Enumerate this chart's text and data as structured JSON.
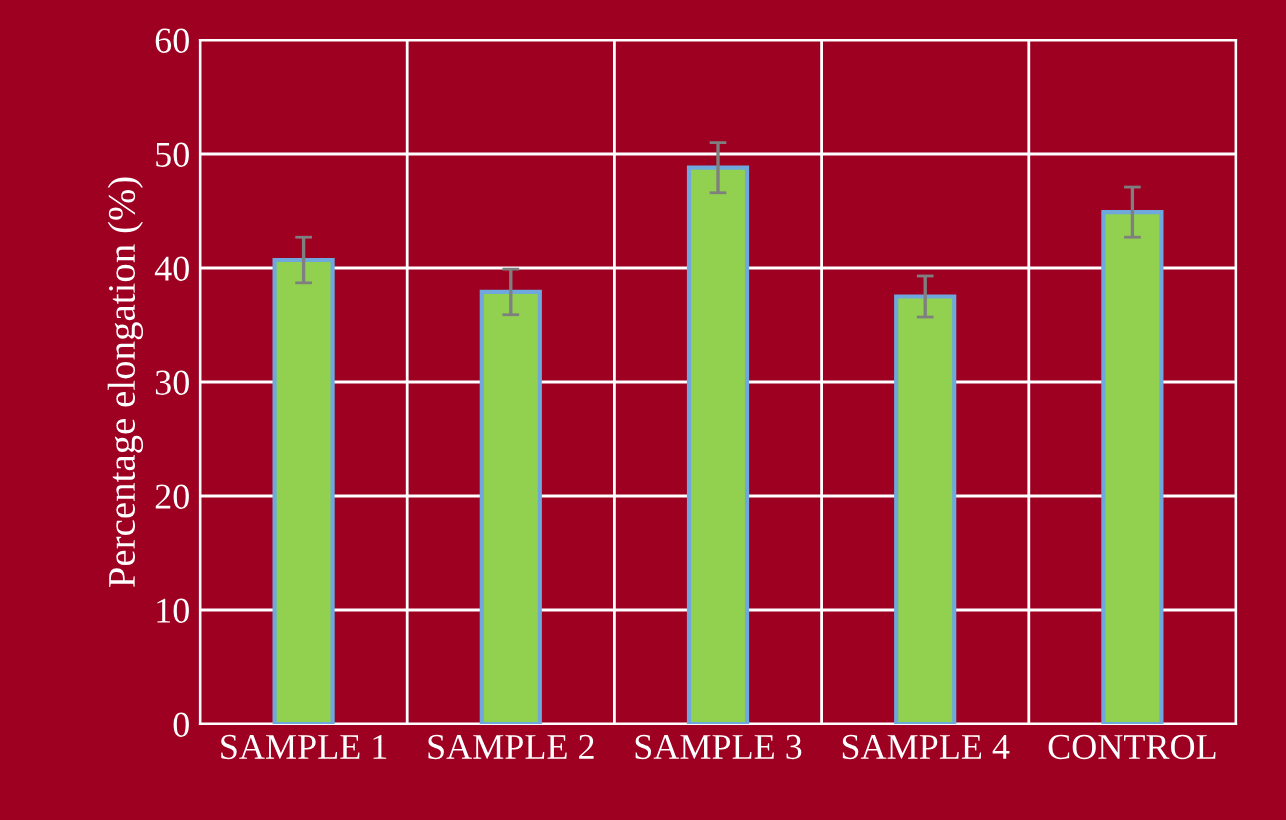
{
  "chart_data": {
    "type": "bar",
    "ylabel": "Percentage elongation (%)",
    "categories": [
      "SAMPLE 1",
      "SAMPLE 2",
      "SAMPLE 3",
      "SAMPLE 4",
      "CONTROL"
    ],
    "values": [
      40.7,
      37.9,
      48.8,
      37.5,
      44.9
    ],
    "errors": [
      2,
      2,
      2.2,
      1.8,
      2.2
    ],
    "color": "#92d050",
    "ylim": [
      0,
      60
    ],
    "yticks": [
      0,
      10,
      20,
      30,
      40,
      50,
      60
    ],
    "grid": true
  }
}
